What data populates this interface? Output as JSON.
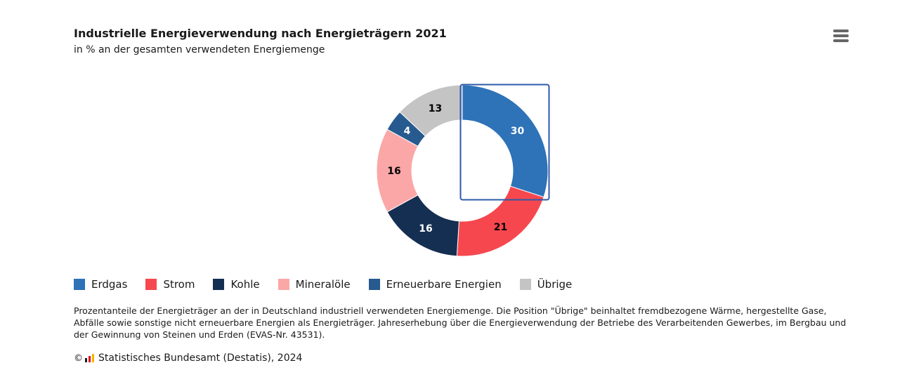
{
  "header": {
    "title": "Industrielle Energieverwendung nach Energieträgern 2021",
    "subtitle": "in % an der gesamten verwendeten Energiemenge"
  },
  "menu": {
    "icon": "hamburger-menu-icon"
  },
  "chart_data": {
    "type": "pie",
    "variant": "donut",
    "title": "Industrielle Energieverwendung nach Energieträgern 2021",
    "subtitle": "in % an der gesamten verwendeten Energiemenge",
    "unit": "%",
    "legend_position": "bottom-left",
    "highlighted": "Erdgas",
    "slices": [
      {
        "name": "Erdgas",
        "value": 30,
        "label": "30",
        "color": "#2e72b8",
        "label_color": "#ffffff"
      },
      {
        "name": "Strom",
        "value": 21,
        "label": "21",
        "color": "#f7474e",
        "label_color": "#000000"
      },
      {
        "name": "Kohle",
        "value": 16,
        "label": "16",
        "color": "#152f52",
        "label_color": "#ffffff"
      },
      {
        "name": "Mineralöle",
        "value": 16,
        "label": "16",
        "color": "#fba7a7",
        "label_color": "#000000"
      },
      {
        "name": "Erneuerbare Energien",
        "value": 4,
        "label": "4",
        "color": "#275a8e",
        "label_color": "#ffffff"
      },
      {
        "name": "Übrige",
        "value": 13,
        "label": "13",
        "color": "#c4c4c4",
        "label_color": "#000000"
      }
    ]
  },
  "footnote": "Prozentanteile der Energieträger an der in Deutschland industriell verwendeten Energiemenge. Die Position \"Übrige\" beinhaltet fremdbezogene Wärme, hergestellte Gase, Abfälle sowie sonstige nicht erneuerbare Energien als Energieträger. Jahreserhebung über die Energieverwendung der Betriebe des Verarbeitenden Gewerbes, im Bergbau und der Gewinnung von Steinen und Erden (EVAS-Nr. 43531).",
  "source": {
    "copyright_symbol": "©",
    "text": "Statistisches Bundesamt (Destatis), 2024"
  }
}
